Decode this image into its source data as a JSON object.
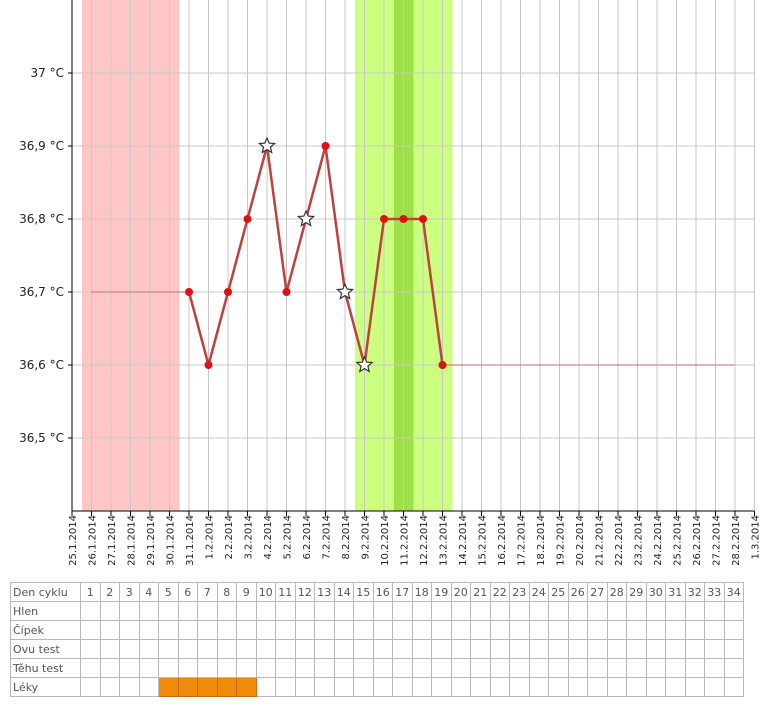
{
  "chart_data": {
    "type": "line",
    "y_tick_labels": [
      "36,5 °C",
      "36,6 °C",
      "36,7 °C",
      "36,8 °C",
      "36,9 °C",
      "37 °C"
    ],
    "y_ticks": [
      36.5,
      36.6,
      36.7,
      36.8,
      36.9,
      37.0
    ],
    "ylim": [
      36.4,
      37.1
    ],
    "x_dates": [
      "25.1.2014",
      "26.1.2014",
      "27.1.2014",
      "28.1.2014",
      "29.1.2014",
      "30.1.2014",
      "31.1.2014",
      "1.2.2014",
      "2.2.2014",
      "3.2.2014",
      "4.2.2014",
      "5.2.2014",
      "6.2.2014",
      "7.2.2014",
      "8.2.2014",
      "9.2.2014",
      "10.2.2014",
      "11.2.2014",
      "12.2.2014",
      "13.2.2014",
      "14.2.2014",
      "15.2.2014",
      "16.2.2014",
      "17.2.2014",
      "18.2.2014",
      "19.2.2014",
      "20.2.2014",
      "21.2.2014",
      "22.2.2014",
      "23.2.2014",
      "24.2.2014",
      "25.2.2014",
      "26.2.2014",
      "27.2.2014",
      "28.2.2014",
      "1.3.2014"
    ],
    "series": [
      {
        "values": [
          {
            "x": "31.1.2014",
            "y": 36.7
          },
          {
            "x": "1.2.2014",
            "y": 36.6
          },
          {
            "x": "2.2.2014",
            "y": 36.7
          },
          {
            "x": "3.2.2014",
            "y": 36.8
          },
          {
            "x": "4.2.2014",
            "y": 36.9
          },
          {
            "x": "5.2.2014",
            "y": 36.7
          },
          {
            "x": "6.2.2014",
            "y": 36.8
          },
          {
            "x": "7.2.2014",
            "y": 36.9
          },
          {
            "x": "8.2.2014",
            "y": 36.7
          },
          {
            "x": "9.2.2014",
            "y": 36.6
          },
          {
            "x": "10.2.2014",
            "y": 36.8
          },
          {
            "x": "11.2.2014",
            "y": 36.8
          },
          {
            "x": "12.2.2014",
            "y": 36.8
          },
          {
            "x": "13.2.2014",
            "y": 36.6
          }
        ]
      }
    ],
    "star_markers": [
      "4.2.2014",
      "6.2.2014",
      "8.2.2014",
      "9.2.2014"
    ],
    "baseline_before": {
      "y": 36.7,
      "from": "26.1.2014",
      "to": "31.1.2014"
    },
    "baseline_after": {
      "y": 36.6,
      "from": "13.2.2014",
      "to": "28.2.2014"
    },
    "shaded_bands": [
      {
        "from": "25.1.2014",
        "to": "30.1.2014",
        "color": "#ffc6c6"
      },
      {
        "from": "8.2.2014",
        "to": "13.2.2014",
        "color": "#ccff80"
      },
      {
        "from": "10.2.2014",
        "to": "11.2.2014",
        "color": "#9de048"
      }
    ],
    "colors": {
      "line": "#c04040",
      "point": "#dd1111",
      "grid": "#c8c8c8"
    }
  },
  "table": {
    "row_labels": [
      "Den cyklu",
      "Hlen",
      "Čípek",
      "Ovu test",
      "Těhu test",
      "Léky"
    ],
    "cycle_days": [
      "1",
      "2",
      "3",
      "4",
      "5",
      "6",
      "7",
      "8",
      "9",
      "10",
      "11",
      "12",
      "13",
      "14",
      "15",
      "16",
      "17",
      "18",
      "19",
      "20",
      "21",
      "22",
      "23",
      "24",
      "25",
      "26",
      "27",
      "28",
      "29",
      "30",
      "31",
      "32",
      "33",
      "34"
    ],
    "medication_days": [
      5,
      6,
      7,
      8,
      9
    ]
  }
}
